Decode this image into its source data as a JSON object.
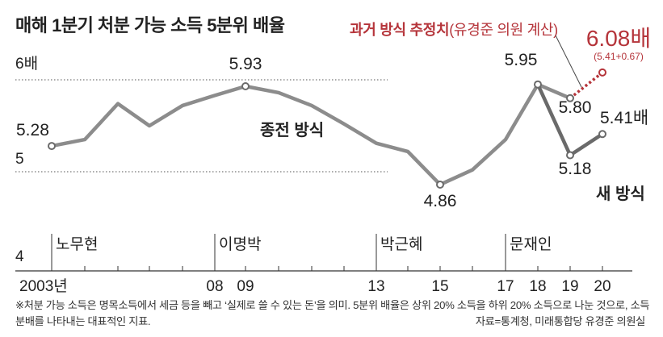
{
  "title": "매해 1분기 처분 가능 소득 5분위 배율",
  "old_estimate_legend": {
    "label": "과거 방식 추정치",
    "note": "(유경준 의원 계산)"
  },
  "footnote": {
    "text": "※처분 가능 소득은 명목소득에서 세금 등을 빼고 ‘실제로 쓸 수 있는 돈’을 의미. 5분위 배율은 상위 20% 소득을 하위 20% 소득으로 나눈 것으로, 소득 분배를 나타내는 대표적인 지표.",
    "source": "자료=통계청, 미래통합당 유경준 의원실"
  },
  "colors": {
    "old_method": "#8c8c8c",
    "new_method": "#6a6a6a",
    "estimate": "#b5343a",
    "text": "#222222"
  },
  "chart_data": {
    "type": "line",
    "title": "매해 1분기 처분 가능 소득 5분위 배율",
    "y_tick_labels": [
      {
        "value": 6,
        "label": "6배"
      },
      {
        "value": 5,
        "label": "5"
      },
      {
        "value": 4,
        "label": "4"
      }
    ],
    "x_tick_labels": [
      {
        "year": 2003,
        "label": "2003년"
      },
      {
        "year": 2008,
        "label": "08"
      },
      {
        "year": 2009,
        "label": "09"
      },
      {
        "year": 2013,
        "label": "13"
      },
      {
        "year": 2015,
        "label": "15"
      },
      {
        "year": 2017,
        "label": "17"
      },
      {
        "year": 2018,
        "label": "18"
      },
      {
        "year": 2019,
        "label": "19"
      },
      {
        "year": 2020,
        "label": "20"
      }
    ],
    "presidencies": [
      {
        "name": "노무현",
        "start": 2003
      },
      {
        "name": "이명박",
        "start": 2008
      },
      {
        "name": "박근혜",
        "start": 2013
      },
      {
        "name": "문재인",
        "start": 2017
      }
    ],
    "series": [
      {
        "name": "종전 방식",
        "x": [
          2003,
          2004,
          2005,
          2006,
          2007,
          2008,
          2009,
          2010,
          2011,
          2012,
          2013,
          2014,
          2015,
          2016,
          2017,
          2018,
          2019
        ],
        "y": [
          5.28,
          5.35,
          5.74,
          5.5,
          5.72,
          5.83,
          5.93,
          5.86,
          5.72,
          5.52,
          5.31,
          5.22,
          4.86,
          5.02,
          5.35,
          5.95,
          5.8
        ]
      },
      {
        "name": "새 방식",
        "x": [
          2018,
          2019,
          2020
        ],
        "y": [
          5.95,
          5.18,
          5.41
        ]
      },
      {
        "name": "과거 방식 추정치",
        "x": [
          2019,
          2020
        ],
        "y": [
          5.8,
          6.08
        ]
      }
    ],
    "data_labels": [
      {
        "series": "종전 방식",
        "year": 2003,
        "text": "5.28"
      },
      {
        "series": "종전 방식",
        "year": 2009,
        "text": "5.93"
      },
      {
        "series": "종전 방식",
        "year": 2015,
        "text": "4.86"
      },
      {
        "series": "종전 방식",
        "year": 2018,
        "text": "5.95"
      },
      {
        "series": "종전 방식",
        "year": 2019,
        "text": "5.80"
      },
      {
        "series": "새 방식",
        "year": 2019,
        "text": "5.18"
      },
      {
        "series": "새 방식",
        "year": 2020,
        "text": "5.41배"
      },
      {
        "series": "과거 방식 추정치",
        "year": 2020,
        "text": "6.08배",
        "subtext": "(5.41+0.67)"
      }
    ],
    "series_labels": {
      "old_method": "종전 방식",
      "new_method": "새 방식"
    },
    "marked_points": [
      {
        "series": "종전 방식",
        "year": 2003
      },
      {
        "series": "종전 방식",
        "year": 2009
      },
      {
        "series": "종전 방식",
        "year": 2015
      },
      {
        "series": "종전 방식",
        "year": 2018
      },
      {
        "series": "종전 방식",
        "year": 2019
      },
      {
        "series": "새 방식",
        "year": 2019
      },
      {
        "series": "새 방식",
        "year": 2020
      },
      {
        "series": "과거 방식 추정치",
        "year": 2020
      }
    ]
  }
}
